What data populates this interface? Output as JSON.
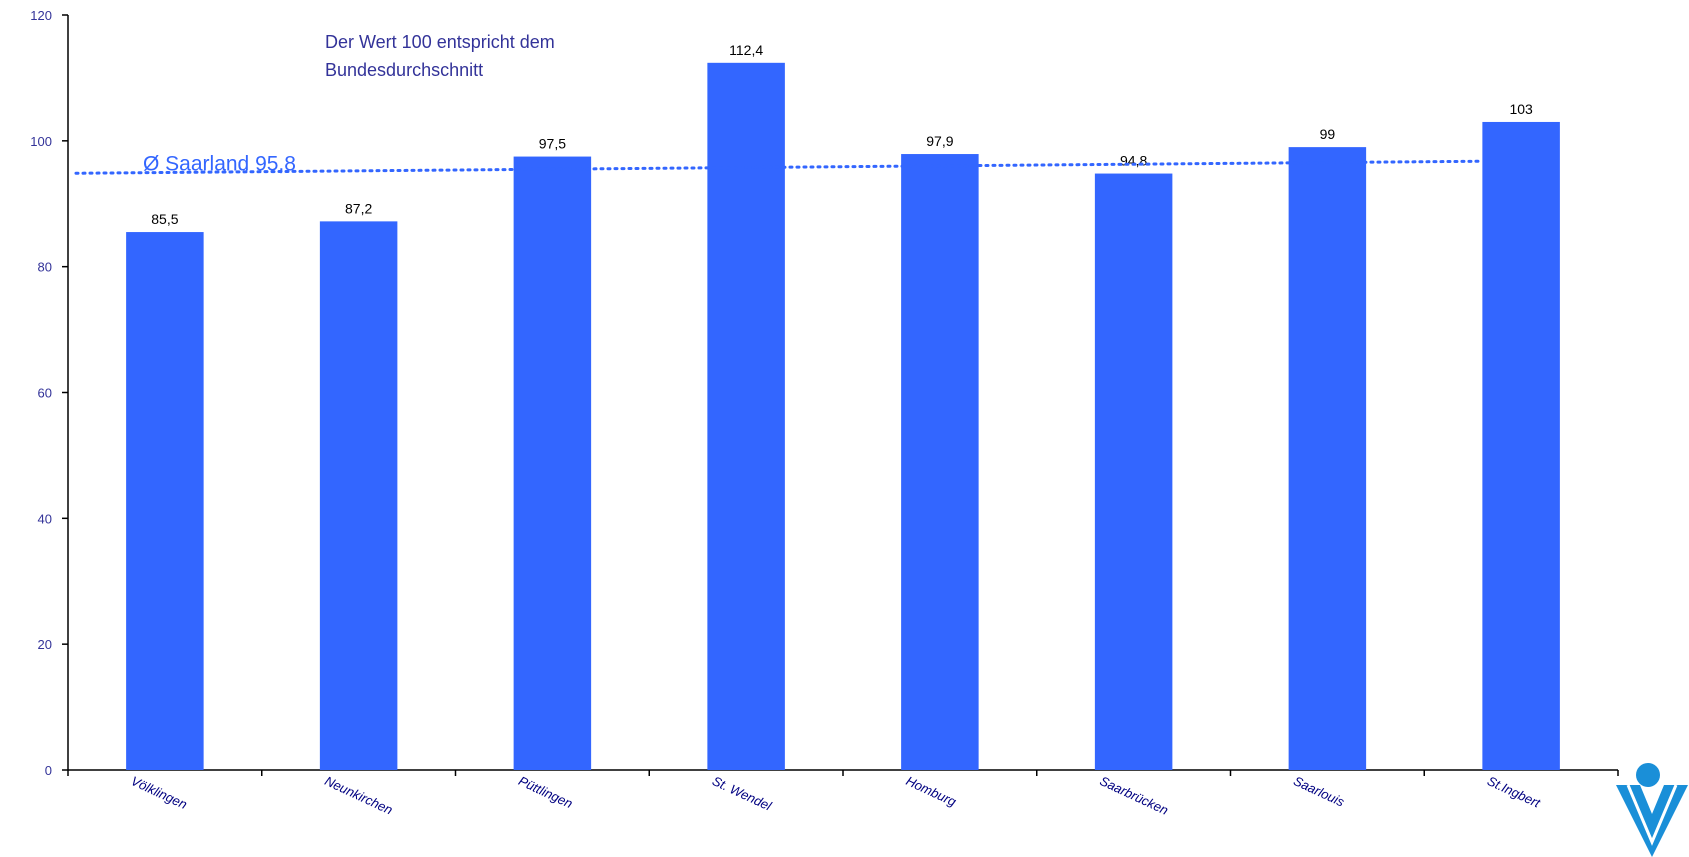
{
  "chart_data": {
    "type": "bar",
    "categories": [
      "Völklingen",
      "Neunkirchen",
      "Püttlingen",
      "St. Wendel",
      "Homburg",
      "Saarbrücken",
      "Saarlouis",
      "St.Ingbert"
    ],
    "values": [
      85.5,
      87.2,
      97.5,
      112.4,
      97.9,
      94.8,
      99,
      103
    ],
    "value_labels": [
      "85,5",
      "87,2",
      "97,5",
      "112,4",
      "97,9",
      "94,8",
      "99",
      "103"
    ],
    "ylim": [
      0,
      120
    ],
    "yticks": [
      0,
      20,
      40,
      60,
      80,
      100,
      120
    ],
    "ytick_labels": [
      "0",
      "20",
      "40",
      "60",
      "80",
      "100",
      "120"
    ],
    "grid": false,
    "bar_color": "#3366ff",
    "axis_color": "#000000",
    "reference_line": {
      "value": 95.8,
      "label": "Ø Saarland 95,8",
      "style": "dotted",
      "color": "#3366ff"
    },
    "annotation": {
      "lines": [
        "Der Wert 100 entspricht dem",
        "Bundesdurchschnitt"
      ],
      "color": "#333399"
    }
  },
  "logo": {
    "icon": "logo-icon",
    "color": "#1a8fd8"
  }
}
